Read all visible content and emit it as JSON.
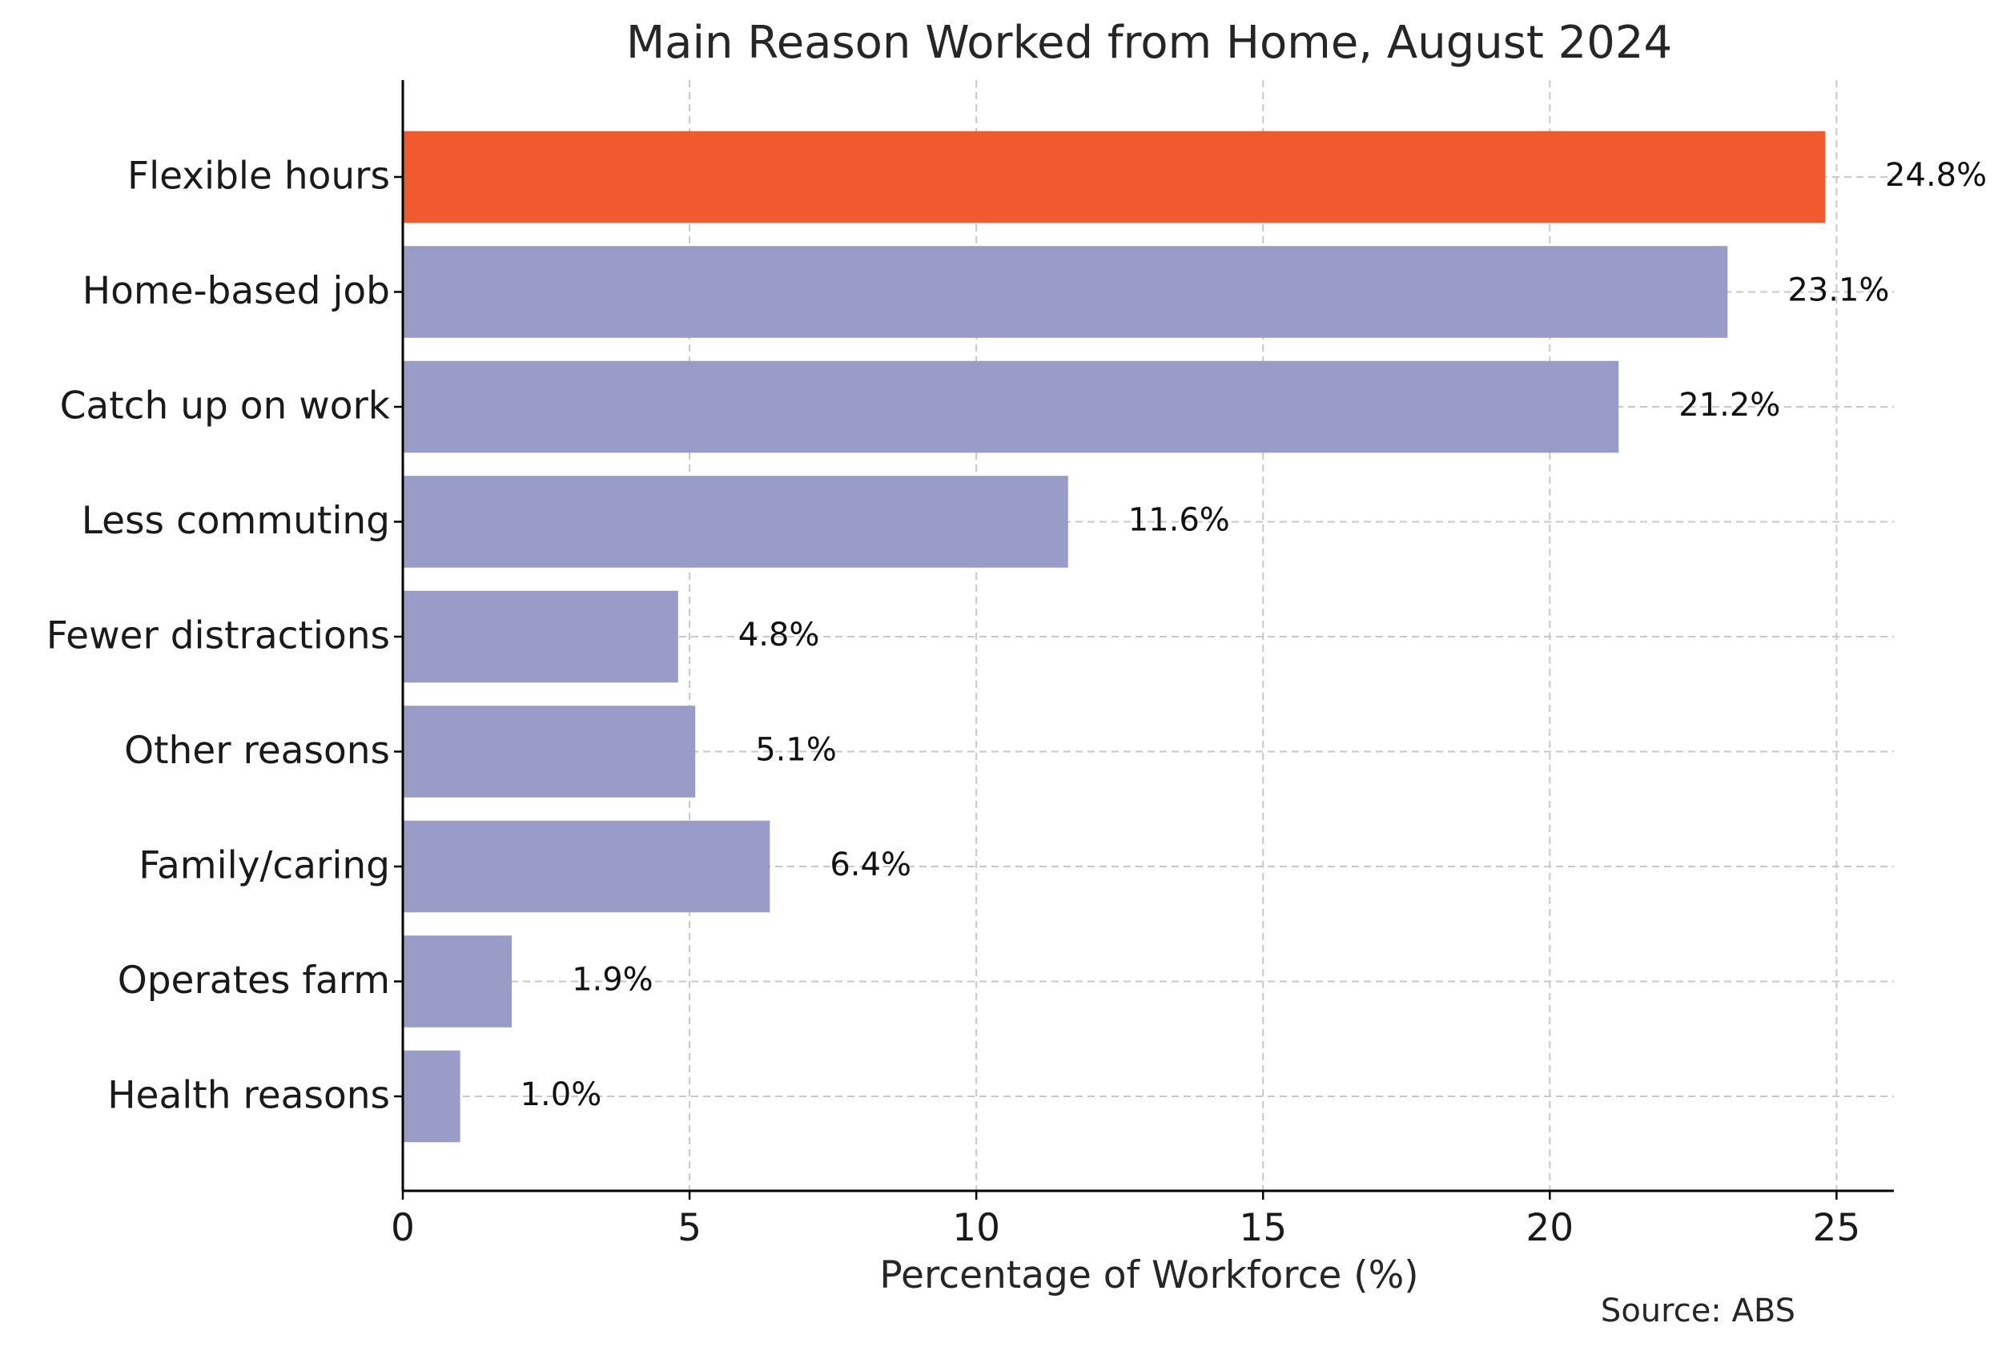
{
  "chart_data": {
    "type": "bar",
    "orientation": "horizontal",
    "title": "Main Reason Worked from Home, August 2024",
    "xlabel": "Percentage of Workforce (%)",
    "ylabel": "",
    "xlim": [
      0,
      26
    ],
    "xticks": [
      0,
      5,
      10,
      15,
      20,
      25
    ],
    "grid": true,
    "source": "Source: ABS",
    "categories": [
      "Flexible hours",
      "Home-based job",
      "Catch up on work",
      "Less commuting",
      "Fewer distractions",
      "Other reasons",
      "Family/caring",
      "Operates farm",
      "Health reasons"
    ],
    "values": [
      24.8,
      23.1,
      21.2,
      11.6,
      4.8,
      5.1,
      6.4,
      1.9,
      1.0
    ],
    "value_labels": [
      "24.8%",
      "23.1%",
      "21.2%",
      "11.6%",
      "4.8%",
      "5.1%",
      "6.4%",
      "1.9%",
      "1.0%"
    ],
    "highlight_category": "Flexible hours",
    "colors": {
      "highlight": "#f05a2e",
      "default": "#9a9cc8"
    }
  }
}
